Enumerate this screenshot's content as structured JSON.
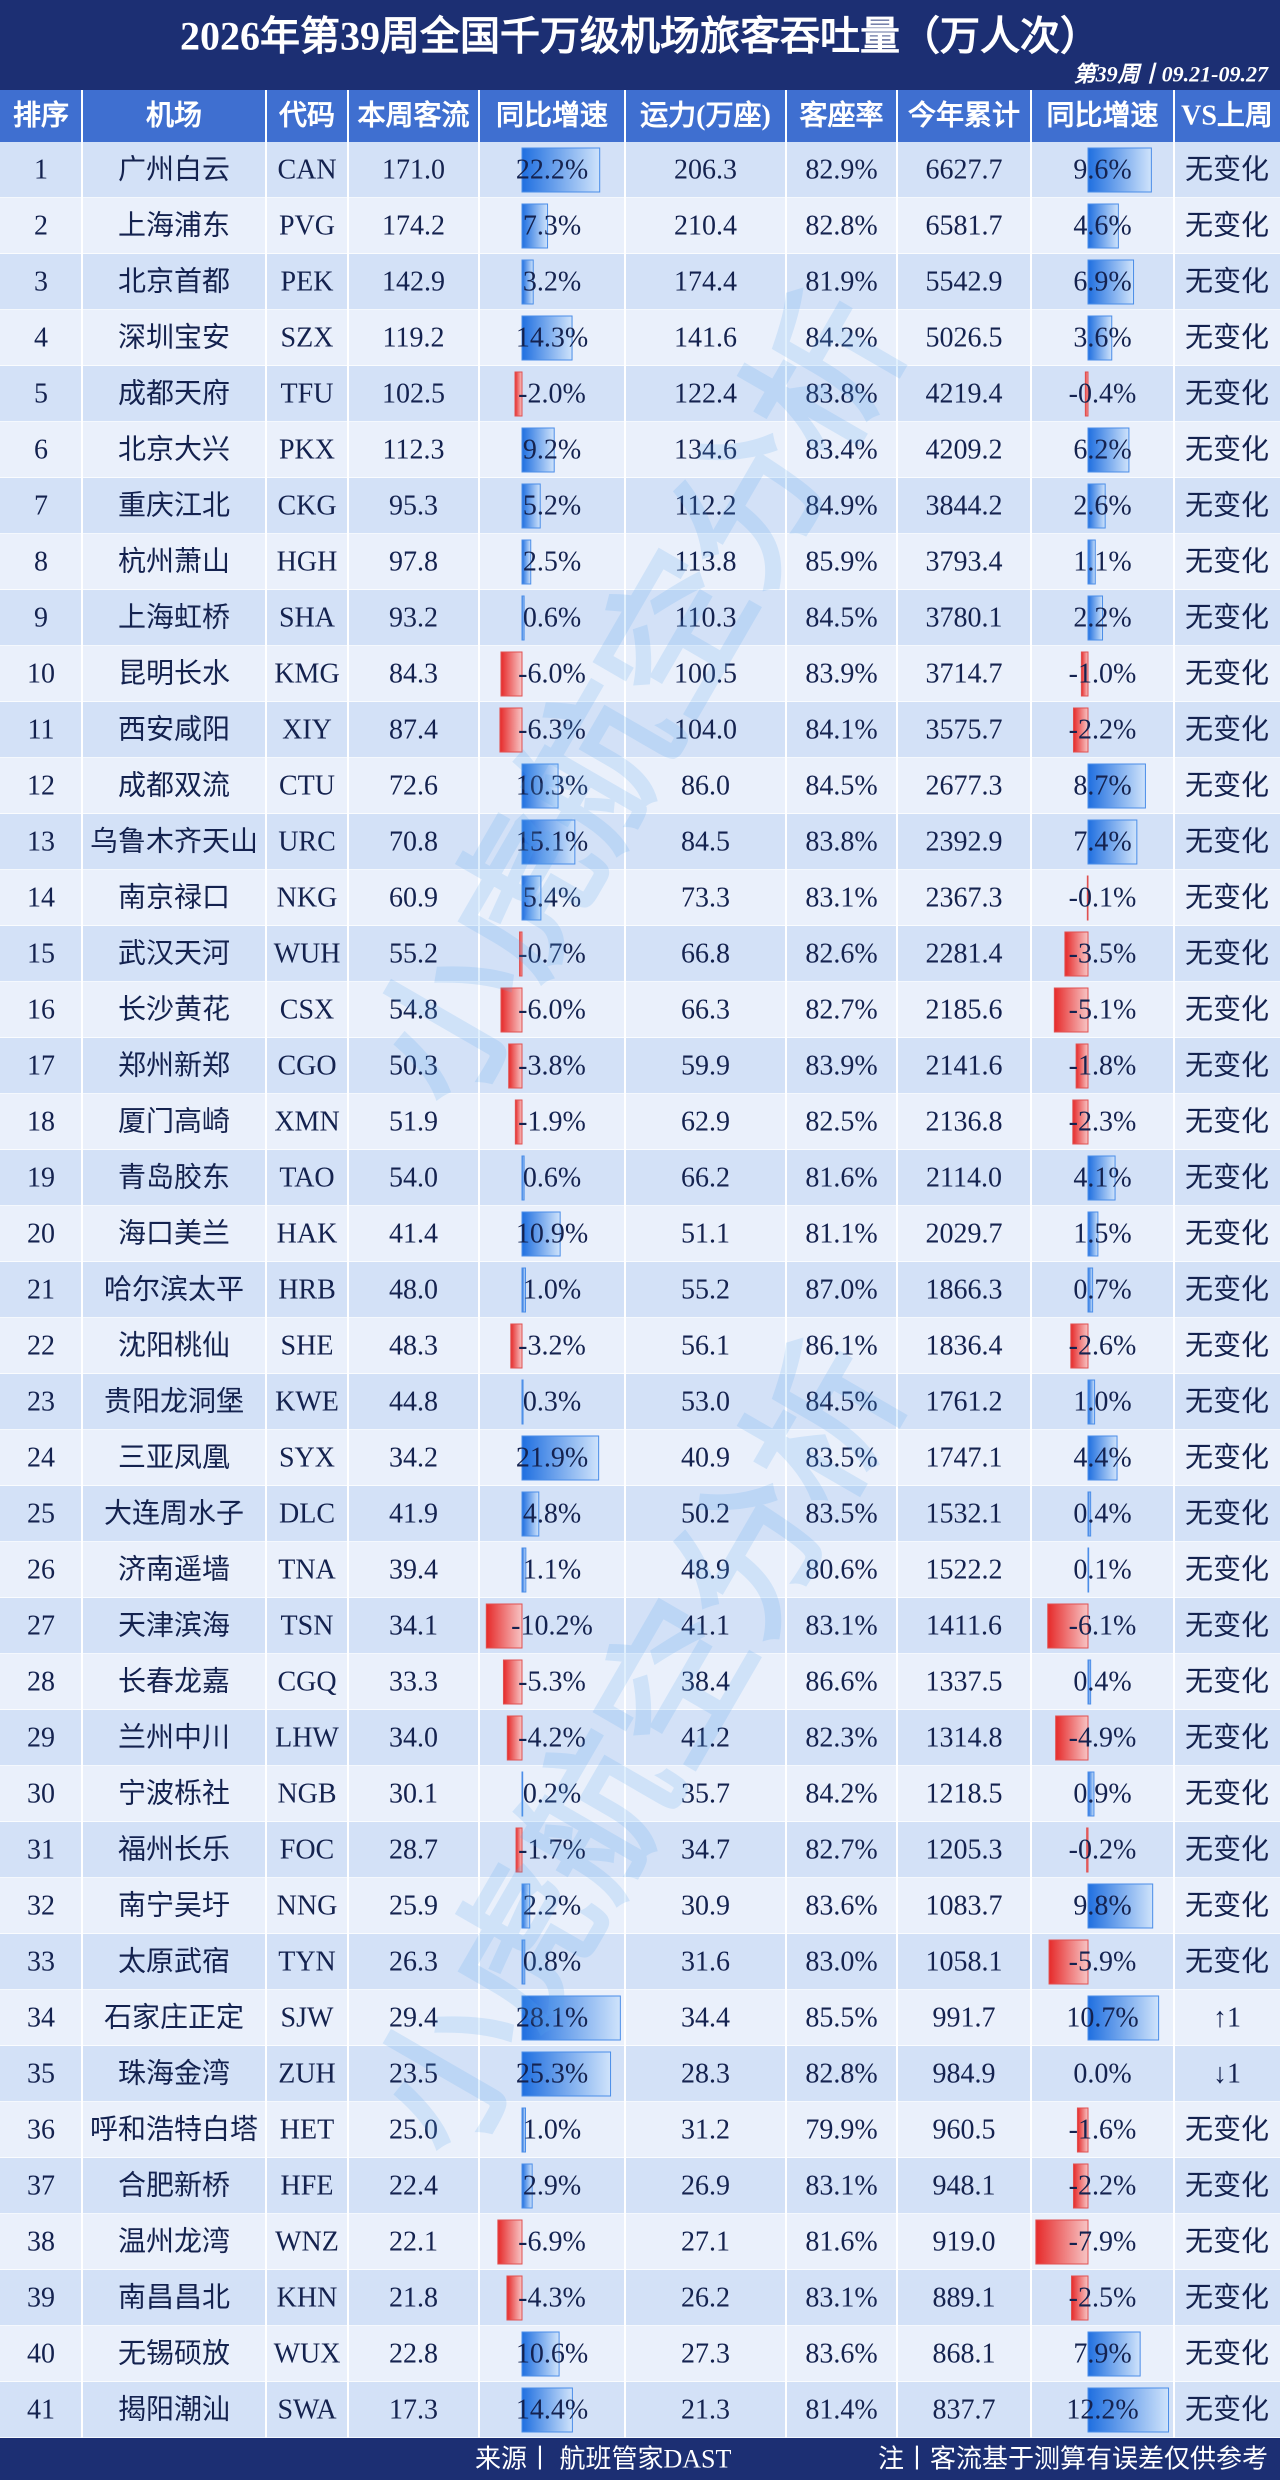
{
  "header": {
    "title": "2026年第39周全国千万级机场旅客吞吐量（万人次）",
    "subtitle": "第39周丨09.21-09.27"
  },
  "table": {
    "columns": [
      "排序",
      "机场",
      "代码",
      "本周客流",
      "同比增速",
      "运力(万座)",
      "客座率",
      "今年累计",
      "同比增速",
      "VS上周"
    ],
    "rows": [
      [
        "1",
        "广州白云",
        "CAN",
        "171.0",
        "22.2%",
        "206.3",
        "82.9%",
        "6627.7",
        "9.6%",
        "无变化"
      ],
      [
        "2",
        "上海浦东",
        "PVG",
        "174.2",
        "7.3%",
        "210.4",
        "82.8%",
        "6581.7",
        "4.6%",
        "无变化"
      ],
      [
        "3",
        "北京首都",
        "PEK",
        "142.9",
        "3.2%",
        "174.4",
        "81.9%",
        "5542.9",
        "6.9%",
        "无变化"
      ],
      [
        "4",
        "深圳宝安",
        "SZX",
        "119.2",
        "14.3%",
        "141.6",
        "84.2%",
        "5026.5",
        "3.6%",
        "无变化"
      ],
      [
        "5",
        "成都天府",
        "TFU",
        "102.5",
        "-2.0%",
        "122.4",
        "83.8%",
        "4219.4",
        "-0.4%",
        "无变化"
      ],
      [
        "6",
        "北京大兴",
        "PKX",
        "112.3",
        "9.2%",
        "134.6",
        "83.4%",
        "4209.2",
        "6.2%",
        "无变化"
      ],
      [
        "7",
        "重庆江北",
        "CKG",
        "95.3",
        "5.2%",
        "112.2",
        "84.9%",
        "3844.2",
        "2.6%",
        "无变化"
      ],
      [
        "8",
        "杭州萧山",
        "HGH",
        "97.8",
        "2.5%",
        "113.8",
        "85.9%",
        "3793.4",
        "1.1%",
        "无变化"
      ],
      [
        "9",
        "上海虹桥",
        "SHA",
        "93.2",
        "0.6%",
        "110.3",
        "84.5%",
        "3780.1",
        "2.2%",
        "无变化"
      ],
      [
        "10",
        "昆明长水",
        "KMG",
        "84.3",
        "-6.0%",
        "100.5",
        "83.9%",
        "3714.7",
        "-1.0%",
        "无变化"
      ],
      [
        "11",
        "西安咸阳",
        "XIY",
        "87.4",
        "-6.3%",
        "104.0",
        "84.1%",
        "3575.7",
        "-2.2%",
        "无变化"
      ],
      [
        "12",
        "成都双流",
        "CTU",
        "72.6",
        "10.3%",
        "86.0",
        "84.5%",
        "2677.3",
        "8.7%",
        "无变化"
      ],
      [
        "13",
        "乌鲁木齐天山",
        "URC",
        "70.8",
        "15.1%",
        "84.5",
        "83.8%",
        "2392.9",
        "7.4%",
        "无变化"
      ],
      [
        "14",
        "南京禄口",
        "NKG",
        "60.9",
        "5.4%",
        "73.3",
        "83.1%",
        "2367.3",
        "-0.1%",
        "无变化"
      ],
      [
        "15",
        "武汉天河",
        "WUH",
        "55.2",
        "-0.7%",
        "66.8",
        "82.6%",
        "2281.4",
        "-3.5%",
        "无变化"
      ],
      [
        "16",
        "长沙黄花",
        "CSX",
        "54.8",
        "-6.0%",
        "66.3",
        "82.7%",
        "2185.6",
        "-5.1%",
        "无变化"
      ],
      [
        "17",
        "郑州新郑",
        "CGO",
        "50.3",
        "-3.8%",
        "59.9",
        "83.9%",
        "2141.6",
        "-1.8%",
        "无变化"
      ],
      [
        "18",
        "厦门高崎",
        "XMN",
        "51.9",
        "-1.9%",
        "62.9",
        "82.5%",
        "2136.8",
        "-2.3%",
        "无变化"
      ],
      [
        "19",
        "青岛胶东",
        "TAO",
        "54.0",
        "0.6%",
        "66.2",
        "81.6%",
        "2114.0",
        "4.1%",
        "无变化"
      ],
      [
        "20",
        "海口美兰",
        "HAK",
        "41.4",
        "10.9%",
        "51.1",
        "81.1%",
        "2029.7",
        "1.5%",
        "无变化"
      ],
      [
        "21",
        "哈尔滨太平",
        "HRB",
        "48.0",
        "1.0%",
        "55.2",
        "87.0%",
        "1866.3",
        "0.7%",
        "无变化"
      ],
      [
        "22",
        "沈阳桃仙",
        "SHE",
        "48.3",
        "-3.2%",
        "56.1",
        "86.1%",
        "1836.4",
        "-2.6%",
        "无变化"
      ],
      [
        "23",
        "贵阳龙洞堡",
        "KWE",
        "44.8",
        "0.3%",
        "53.0",
        "84.5%",
        "1761.2",
        "1.0%",
        "无变化"
      ],
      [
        "24",
        "三亚凤凰",
        "SYX",
        "34.2",
        "21.9%",
        "40.9",
        "83.5%",
        "1747.1",
        "4.4%",
        "无变化"
      ],
      [
        "25",
        "大连周水子",
        "DLC",
        "41.9",
        "4.8%",
        "50.2",
        "83.5%",
        "1532.1",
        "0.4%",
        "无变化"
      ],
      [
        "26",
        "济南遥墙",
        "TNA",
        "39.4",
        "1.1%",
        "48.9",
        "80.6%",
        "1522.2",
        "0.1%",
        "无变化"
      ],
      [
        "27",
        "天津滨海",
        "TSN",
        "34.1",
        "-10.2%",
        "41.1",
        "83.1%",
        "1411.6",
        "-6.1%",
        "无变化"
      ],
      [
        "28",
        "长春龙嘉",
        "CGQ",
        "33.3",
        "-5.3%",
        "38.4",
        "86.6%",
        "1337.5",
        "0.4%",
        "无变化"
      ],
      [
        "29",
        "兰州中川",
        "LHW",
        "34.0",
        "-4.2%",
        "41.2",
        "82.3%",
        "1314.8",
        "-4.9%",
        "无变化"
      ],
      [
        "30",
        "宁波栎社",
        "NGB",
        "30.1",
        "0.2%",
        "35.7",
        "84.2%",
        "1218.5",
        "0.9%",
        "无变化"
      ],
      [
        "31",
        "福州长乐",
        "FOC",
        "28.7",
        "-1.7%",
        "34.7",
        "82.7%",
        "1205.3",
        "-0.2%",
        "无变化"
      ],
      [
        "32",
        "南宁吴圩",
        "NNG",
        "25.9",
        "2.2%",
        "30.9",
        "83.6%",
        "1083.7",
        "9.8%",
        "无变化"
      ],
      [
        "33",
        "太原武宿",
        "TYN",
        "26.3",
        "0.8%",
        "31.6",
        "83.0%",
        "1058.1",
        "-5.9%",
        "无变化"
      ],
      [
        "34",
        "石家庄正定",
        "SJW",
        "29.4",
        "28.1%",
        "34.4",
        "85.5%",
        "991.7",
        "10.7%",
        "↑1"
      ],
      [
        "35",
        "珠海金湾",
        "ZUH",
        "23.5",
        "25.3%",
        "28.3",
        "82.8%",
        "984.9",
        "0.0%",
        "↓1"
      ],
      [
        "36",
        "呼和浩特白塔",
        "HET",
        "25.0",
        "1.0%",
        "31.2",
        "79.9%",
        "960.5",
        "-1.6%",
        "无变化"
      ],
      [
        "37",
        "合肥新桥",
        "HFE",
        "22.4",
        "2.9%",
        "26.9",
        "83.1%",
        "948.1",
        "-2.2%",
        "无变化"
      ],
      [
        "38",
        "温州龙湾",
        "WNZ",
        "22.1",
        "-6.9%",
        "27.1",
        "81.6%",
        "919.0",
        "-7.9%",
        "无变化"
      ],
      [
        "39",
        "南昌昌北",
        "KHN",
        "21.8",
        "-4.3%",
        "26.2",
        "83.1%",
        "889.1",
        "-2.5%",
        "无变化"
      ],
      [
        "40",
        "无锡硕放",
        "WUX",
        "22.8",
        "10.6%",
        "27.3",
        "83.6%",
        "868.1",
        "7.9%",
        "无变化"
      ],
      [
        "41",
        "揭阳潮汕",
        "SWA",
        "17.3",
        "14.4%",
        "21.3",
        "81.4%",
        "837.7",
        "12.2%",
        "无变化"
      ]
    ]
  },
  "footer": {
    "source": "来源丨 航班管家DAST",
    "note": "注丨客流基于测算有误差仅供参考"
  },
  "watermark": "小虎航空分析"
}
